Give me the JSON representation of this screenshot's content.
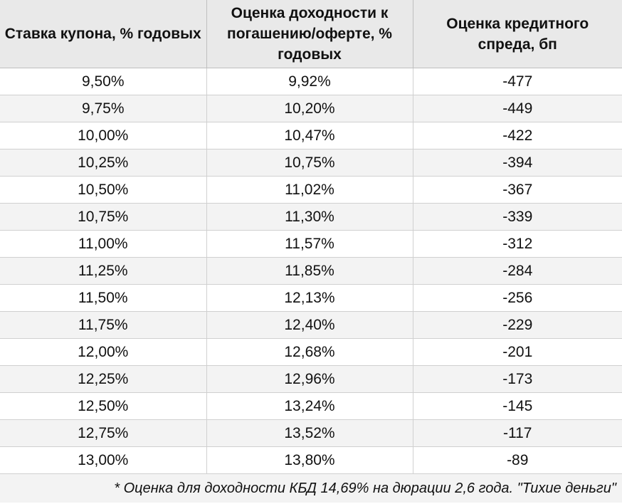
{
  "table": {
    "headers": [
      "Ставка купона, % годовых",
      "Оценка доходности к погашению/оферте, % годовых",
      "Оценка кредитного спреда, бп"
    ],
    "rows": [
      [
        "9,50%",
        "9,92%",
        "-477"
      ],
      [
        "9,75%",
        "10,20%",
        "-449"
      ],
      [
        "10,00%",
        "10,47%",
        "-422"
      ],
      [
        "10,25%",
        "10,75%",
        "-394"
      ],
      [
        "10,50%",
        "11,02%",
        "-367"
      ],
      [
        "10,75%",
        "11,30%",
        "-339"
      ],
      [
        "11,00%",
        "11,57%",
        "-312"
      ],
      [
        "11,25%",
        "11,85%",
        "-284"
      ],
      [
        "11,50%",
        "12,13%",
        "-256"
      ],
      [
        "11,75%",
        "12,40%",
        "-229"
      ],
      [
        "12,00%",
        "12,68%",
        "-201"
      ],
      [
        "12,25%",
        "12,96%",
        "-173"
      ],
      [
        "12,50%",
        "13,24%",
        "-145"
      ],
      [
        "12,75%",
        "13,52%",
        "-117"
      ],
      [
        "13,00%",
        "13,80%",
        "-89"
      ]
    ],
    "footnote": "* Оценка для доходности КБД 14,69% на дюрации 2,6 года. \"Тихие деньги\""
  }
}
